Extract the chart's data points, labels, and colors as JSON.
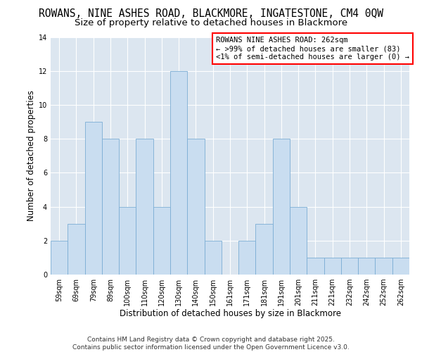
{
  "title_line1": "ROWANS, NINE ASHES ROAD, BLACKMORE, INGATESTONE, CM4 0QW",
  "title_line2": "Size of property relative to detached houses in Blackmore",
  "xlabel": "Distribution of detached houses by size in Blackmore",
  "ylabel": "Number of detached properties",
  "bar_labels": [
    "59sqm",
    "69sqm",
    "79sqm",
    "89sqm",
    "100sqm",
    "110sqm",
    "120sqm",
    "130sqm",
    "140sqm",
    "150sqm",
    "161sqm",
    "171sqm",
    "181sqm",
    "191sqm",
    "201sqm",
    "211sqm",
    "221sqm",
    "232sqm",
    "242sqm",
    "252sqm",
    "262sqm"
  ],
  "bar_values": [
    2,
    3,
    9,
    8,
    4,
    8,
    4,
    12,
    8,
    2,
    0,
    2,
    3,
    8,
    4,
    1,
    1,
    1,
    1,
    1,
    1
  ],
  "bar_color": "#c9ddf0",
  "bar_edge_color": "#7badd4",
  "annotation_box_text": "ROWANS NINE ASHES ROAD: 262sqm\n← >99% of detached houses are smaller (83)\n<1% of semi-detached houses are larger (0) →",
  "annotation_box_edge_color": "red",
  "ylim": [
    0,
    14
  ],
  "yticks": [
    0,
    2,
    4,
    6,
    8,
    10,
    12,
    14
  ],
  "footnote": "Contains HM Land Registry data © Crown copyright and database right 2025.\nContains public sector information licensed under the Open Government Licence v3.0.",
  "background_color": "#ffffff",
  "grid_color": "#ffffff",
  "plot_bg_color": "#dce6f0",
  "title_fontsize": 10.5,
  "subtitle_fontsize": 9.5,
  "axis_label_fontsize": 8.5,
  "tick_label_fontsize": 7,
  "annotation_fontsize": 7.5,
  "footnote_fontsize": 6.5
}
